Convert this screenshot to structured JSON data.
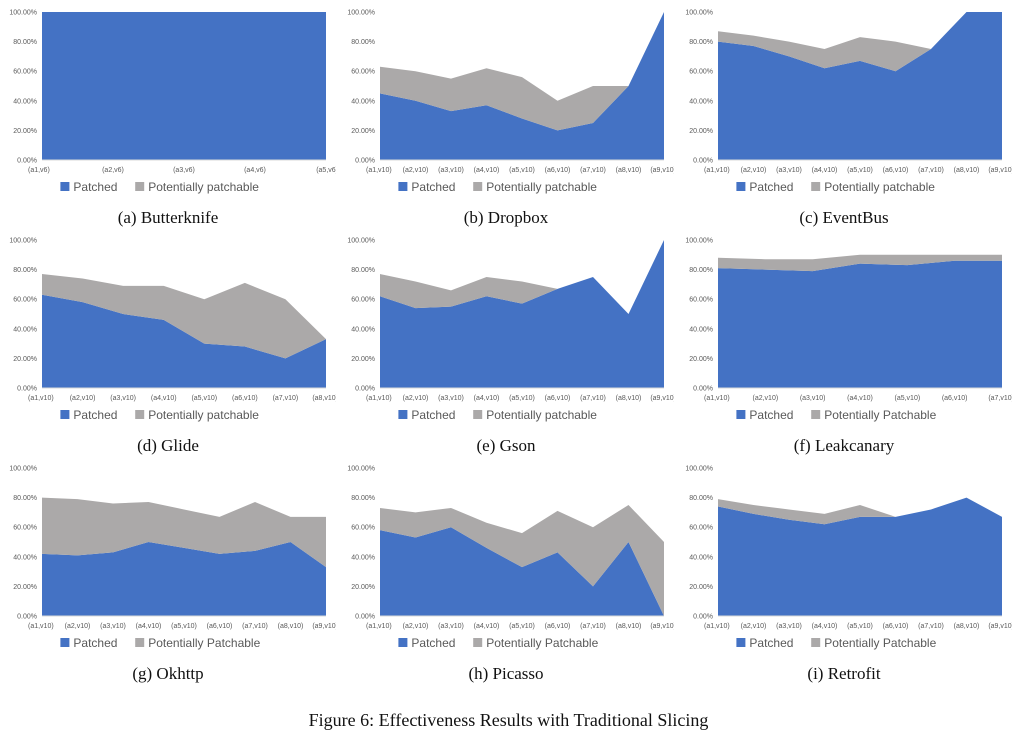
{
  "figure_caption": "Figure 6: Effectiveness Results with Traditional Slicing",
  "colors": {
    "patched": "#4472C4",
    "potential": "#ABA9A9",
    "axis": "#D9D9D9",
    "text": "#595959"
  },
  "chart_data": [
    {
      "type": "area",
      "caption": "(a) Butterknife",
      "categories": [
        "(a1,v6)",
        "(a2,v6)",
        "(a3,v6)",
        "(a4,v6)",
        "(a5,v6)"
      ],
      "y_ticks": [
        "0.00%",
        "20.00%",
        "40.00%",
        "60.00%",
        "80.00%",
        "100.00%"
      ],
      "ylim": [
        0,
        100
      ],
      "stacked": true,
      "legend_position": "bottom",
      "series": [
        {
          "name": "Patched",
          "values": [
            100,
            100,
            100,
            100,
            100
          ]
        },
        {
          "name": "Potentially patchable",
          "values": [
            0,
            0,
            0,
            0,
            0
          ]
        }
      ]
    },
    {
      "type": "area",
      "caption": "(b) Dropbox",
      "categories": [
        "(a1,v10)",
        "(a2,v10)",
        "(a3,v10)",
        "(a4,v10)",
        "(a5,v10)",
        "(a6,v10)",
        "(a7,v10)",
        "(a8,v10)",
        "(a9,v10)"
      ],
      "y_ticks": [
        "0.00%",
        "20.00%",
        "40.00%",
        "60.00%",
        "80.00%",
        "100.00%"
      ],
      "ylim": [
        0,
        100
      ],
      "stacked": true,
      "legend_position": "bottom",
      "series": [
        {
          "name": "Patched",
          "values": [
            45,
            40,
            33,
            37,
            28,
            20,
            25,
            50,
            100
          ]
        },
        {
          "name": "Potentially patchable",
          "values": [
            18,
            20,
            22,
            25,
            28,
            20,
            25,
            0,
            0
          ]
        }
      ]
    },
    {
      "type": "area",
      "caption": "(c) EventBus",
      "categories": [
        "(a1,v10)",
        "(a2,v10)",
        "(a3,v10)",
        "(a4,v10)",
        "(a5,v10)",
        "(a6,v10)",
        "(a7,v10)",
        "(a8,v10)",
        "(a9,v10)"
      ],
      "y_ticks": [
        "0.00%",
        "20.00%",
        "40.00%",
        "60.00%",
        "80.00%",
        "100.00%"
      ],
      "ylim": [
        0,
        100
      ],
      "stacked": true,
      "legend_position": "bottom",
      "series": [
        {
          "name": "Patched",
          "values": [
            80,
            77,
            70,
            62,
            67,
            60,
            75,
            100,
            100
          ]
        },
        {
          "name": "Potentially patchable",
          "values": [
            7,
            7,
            10,
            13,
            16,
            20,
            0,
            0,
            0
          ]
        }
      ]
    },
    {
      "type": "area",
      "caption": "(d) Glide",
      "categories": [
        "(a1,v10)",
        "(a2,v10)",
        "(a3,v10)",
        "(a4,v10)",
        "(a5,v10)",
        "(a6,v10)",
        "(a7,v10)",
        "(a8,v10)"
      ],
      "y_ticks": [
        "0.00%",
        "20.00%",
        "40.00%",
        "60.00%",
        "80.00%",
        "100.00%"
      ],
      "ylim": [
        0,
        100
      ],
      "stacked": true,
      "legend_position": "bottom",
      "series": [
        {
          "name": "Patched",
          "values": [
            63,
            58,
            50,
            46,
            30,
            28,
            20,
            33
          ]
        },
        {
          "name": "Potentially patchable",
          "values": [
            14,
            16,
            19,
            23,
            30,
            43,
            40,
            0
          ]
        }
      ]
    },
    {
      "type": "area",
      "caption": "(e) Gson",
      "categories": [
        "(a1,v10)",
        "(a2,v10)",
        "(a3,v10)",
        "(a4,v10)",
        "(a5,v10)",
        "(a6,v10)",
        "(a7,v10)",
        "(a8,v10)",
        "(a9,v10)"
      ],
      "y_ticks": [
        "0.00%",
        "20.00%",
        "40.00%",
        "60.00%",
        "80.00%",
        "100.00%"
      ],
      "ylim": [
        0,
        100
      ],
      "stacked": true,
      "legend_position": "bottom",
      "series": [
        {
          "name": "Patched",
          "values": [
            62,
            54,
            55,
            62,
            57,
            67,
            75,
            50,
            100
          ]
        },
        {
          "name": "Potentially patchable",
          "values": [
            15,
            18,
            11,
            13,
            15,
            0,
            0,
            0,
            0
          ]
        }
      ]
    },
    {
      "type": "area",
      "caption": "(f) Leakcanary",
      "categories": [
        "(a1,v10)",
        "(a2,v10)",
        "(a3,v10)",
        "(a4,v10)",
        "(a5,v10)",
        "(a6,v10)",
        "(a7,v10)"
      ],
      "y_ticks": [
        "0.00%",
        "20.00%",
        "40.00%",
        "60.00%",
        "80.00%",
        "100.00%"
      ],
      "ylim": [
        0,
        100
      ],
      "stacked": true,
      "legend_position": "bottom",
      "series": [
        {
          "name": "Patched",
          "values": [
            81,
            80,
            79,
            84,
            83,
            86,
            86
          ]
        },
        {
          "name": "Potentially Patchable",
          "values": [
            7,
            7,
            8,
            6,
            7,
            4,
            4
          ]
        }
      ]
    },
    {
      "type": "area",
      "caption": "(g) Okhttp",
      "categories": [
        "(a1,v10)",
        "(a2,v10)",
        "(a3,v10)",
        "(a4,v10)",
        "(a5,v10)",
        "(a6,v10)",
        "(a7,v10)",
        "(a8,v10)",
        "(a9,v10)"
      ],
      "y_ticks": [
        "0.00%",
        "20.00%",
        "40.00%",
        "60.00%",
        "80.00%",
        "100.00%"
      ],
      "ylim": [
        0,
        100
      ],
      "stacked": true,
      "legend_position": "bottom",
      "series": [
        {
          "name": "Patched",
          "values": [
            42,
            41,
            43,
            50,
            46,
            42,
            44,
            50,
            33
          ]
        },
        {
          "name": "Potentially Patchable",
          "values": [
            38,
            38,
            33,
            27,
            26,
            25,
            33,
            17,
            34
          ]
        }
      ]
    },
    {
      "type": "area",
      "caption": "(h) Picasso",
      "categories": [
        "(a1,v10)",
        "(a2,v10)",
        "(a3,v10)",
        "(a4,v10)",
        "(a5,v10)",
        "(a6,v10)",
        "(a7,v10)",
        "(a8,v10)",
        "(a9,v10)"
      ],
      "y_ticks": [
        "0.00%",
        "20.00%",
        "40.00%",
        "60.00%",
        "80.00%",
        "100.00%"
      ],
      "ylim": [
        0,
        100
      ],
      "stacked": true,
      "legend_position": "bottom",
      "series": [
        {
          "name": "Patched",
          "values": [
            58,
            53,
            60,
            46,
            33,
            43,
            20,
            50,
            0
          ]
        },
        {
          "name": "Potentially Patchable",
          "values": [
            15,
            17,
            13,
            17,
            23,
            28,
            40,
            25,
            50
          ]
        }
      ]
    },
    {
      "type": "area",
      "caption": "(i) Retrofit",
      "categories": [
        "(a1,v10)",
        "(a2,v10)",
        "(a3,v10)",
        "(a4,v10)",
        "(a5,v10)",
        "(a6,v10)",
        "(a7,v10)",
        "(a8,v10)",
        "(a9,v10)"
      ],
      "y_ticks": [
        "0.00%",
        "20.00%",
        "40.00%",
        "60.00%",
        "80.00%",
        "100.00%"
      ],
      "ylim": [
        0,
        100
      ],
      "stacked": true,
      "legend_position": "bottom",
      "series": [
        {
          "name": "Patched",
          "values": [
            74,
            69,
            65,
            62,
            67,
            67,
            72,
            80,
            67
          ]
        },
        {
          "name": "Potentially Patchable",
          "values": [
            5,
            6,
            7,
            7,
            8,
            0,
            0,
            0,
            0
          ]
        }
      ]
    }
  ]
}
